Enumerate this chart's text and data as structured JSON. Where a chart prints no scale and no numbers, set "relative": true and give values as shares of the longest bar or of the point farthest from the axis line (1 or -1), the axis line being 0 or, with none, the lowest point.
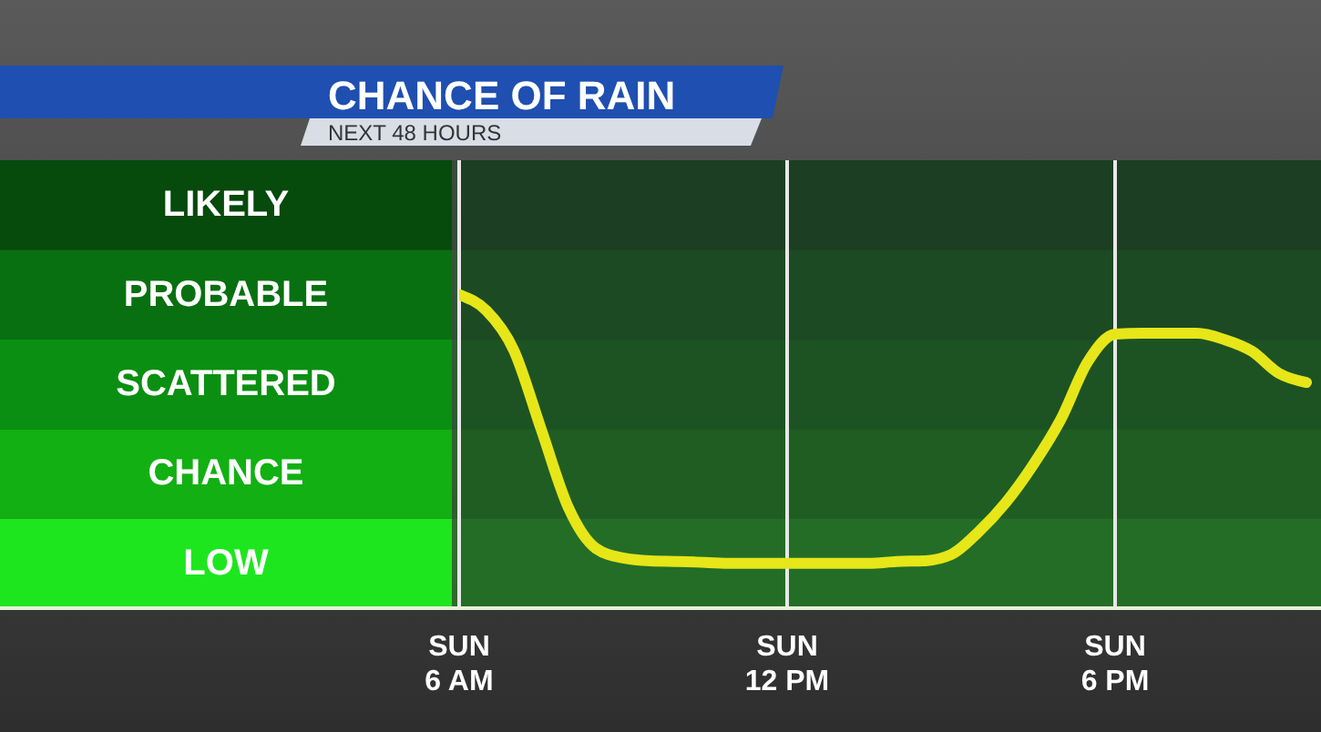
{
  "chart_data": {
    "type": "line",
    "title": "CHANCE OF RAIN",
    "subtitle": "NEXT 48 HOURS",
    "relative": true,
    "categories": [
      "SUN\n6 AM",
      null,
      null,
      null,
      null,
      null,
      null,
      null,
      null,
      null,
      null,
      null,
      "SUN\n12 PM",
      null,
      null,
      null,
      null,
      null,
      null,
      null,
      null,
      null,
      null,
      null,
      "SUN\n6 PM",
      null,
      null,
      null,
      null,
      null,
      null,
      null
    ],
    "series": [
      {
        "color": "#e6e619",
        "values": [
          1.0,
          0.949,
          0.823,
          0.571,
          0.32,
          0.191,
          0.16,
          0.151,
          0.149,
          0.146,
          0.143,
          0.143,
          0.143,
          0.143,
          0.143,
          0.143,
          0.149,
          0.151,
          0.171,
          0.243,
          0.337,
          0.457,
          0.6,
          0.786,
          0.874,
          0.877,
          0.877,
          0.877,
          0.857,
          0.82,
          0.749,
          0.72
        ]
      }
    ],
    "bands": [
      {
        "axis": "y",
        "from": 0,
        "to": 0.286,
        "label": "LOW",
        "color": "#1ee61e"
      },
      {
        "axis": "y",
        "from": 0.286,
        "to": 0.571,
        "label": "CHANCE",
        "color": "#12b012"
      },
      {
        "axis": "y",
        "from": 0.571,
        "to": 0.857,
        "label": "SCATTERED",
        "color": "#0b8f12"
      },
      {
        "axis": "y",
        "from": 0.857,
        "to": 1.143,
        "label": "PROBABLE",
        "color": "#087010"
      },
      {
        "axis": "y",
        "from": 1.143,
        "to": 1.429,
        "label": "LIKELY",
        "color": "#064a0c"
      }
    ],
    "grid": "x"
  }
}
